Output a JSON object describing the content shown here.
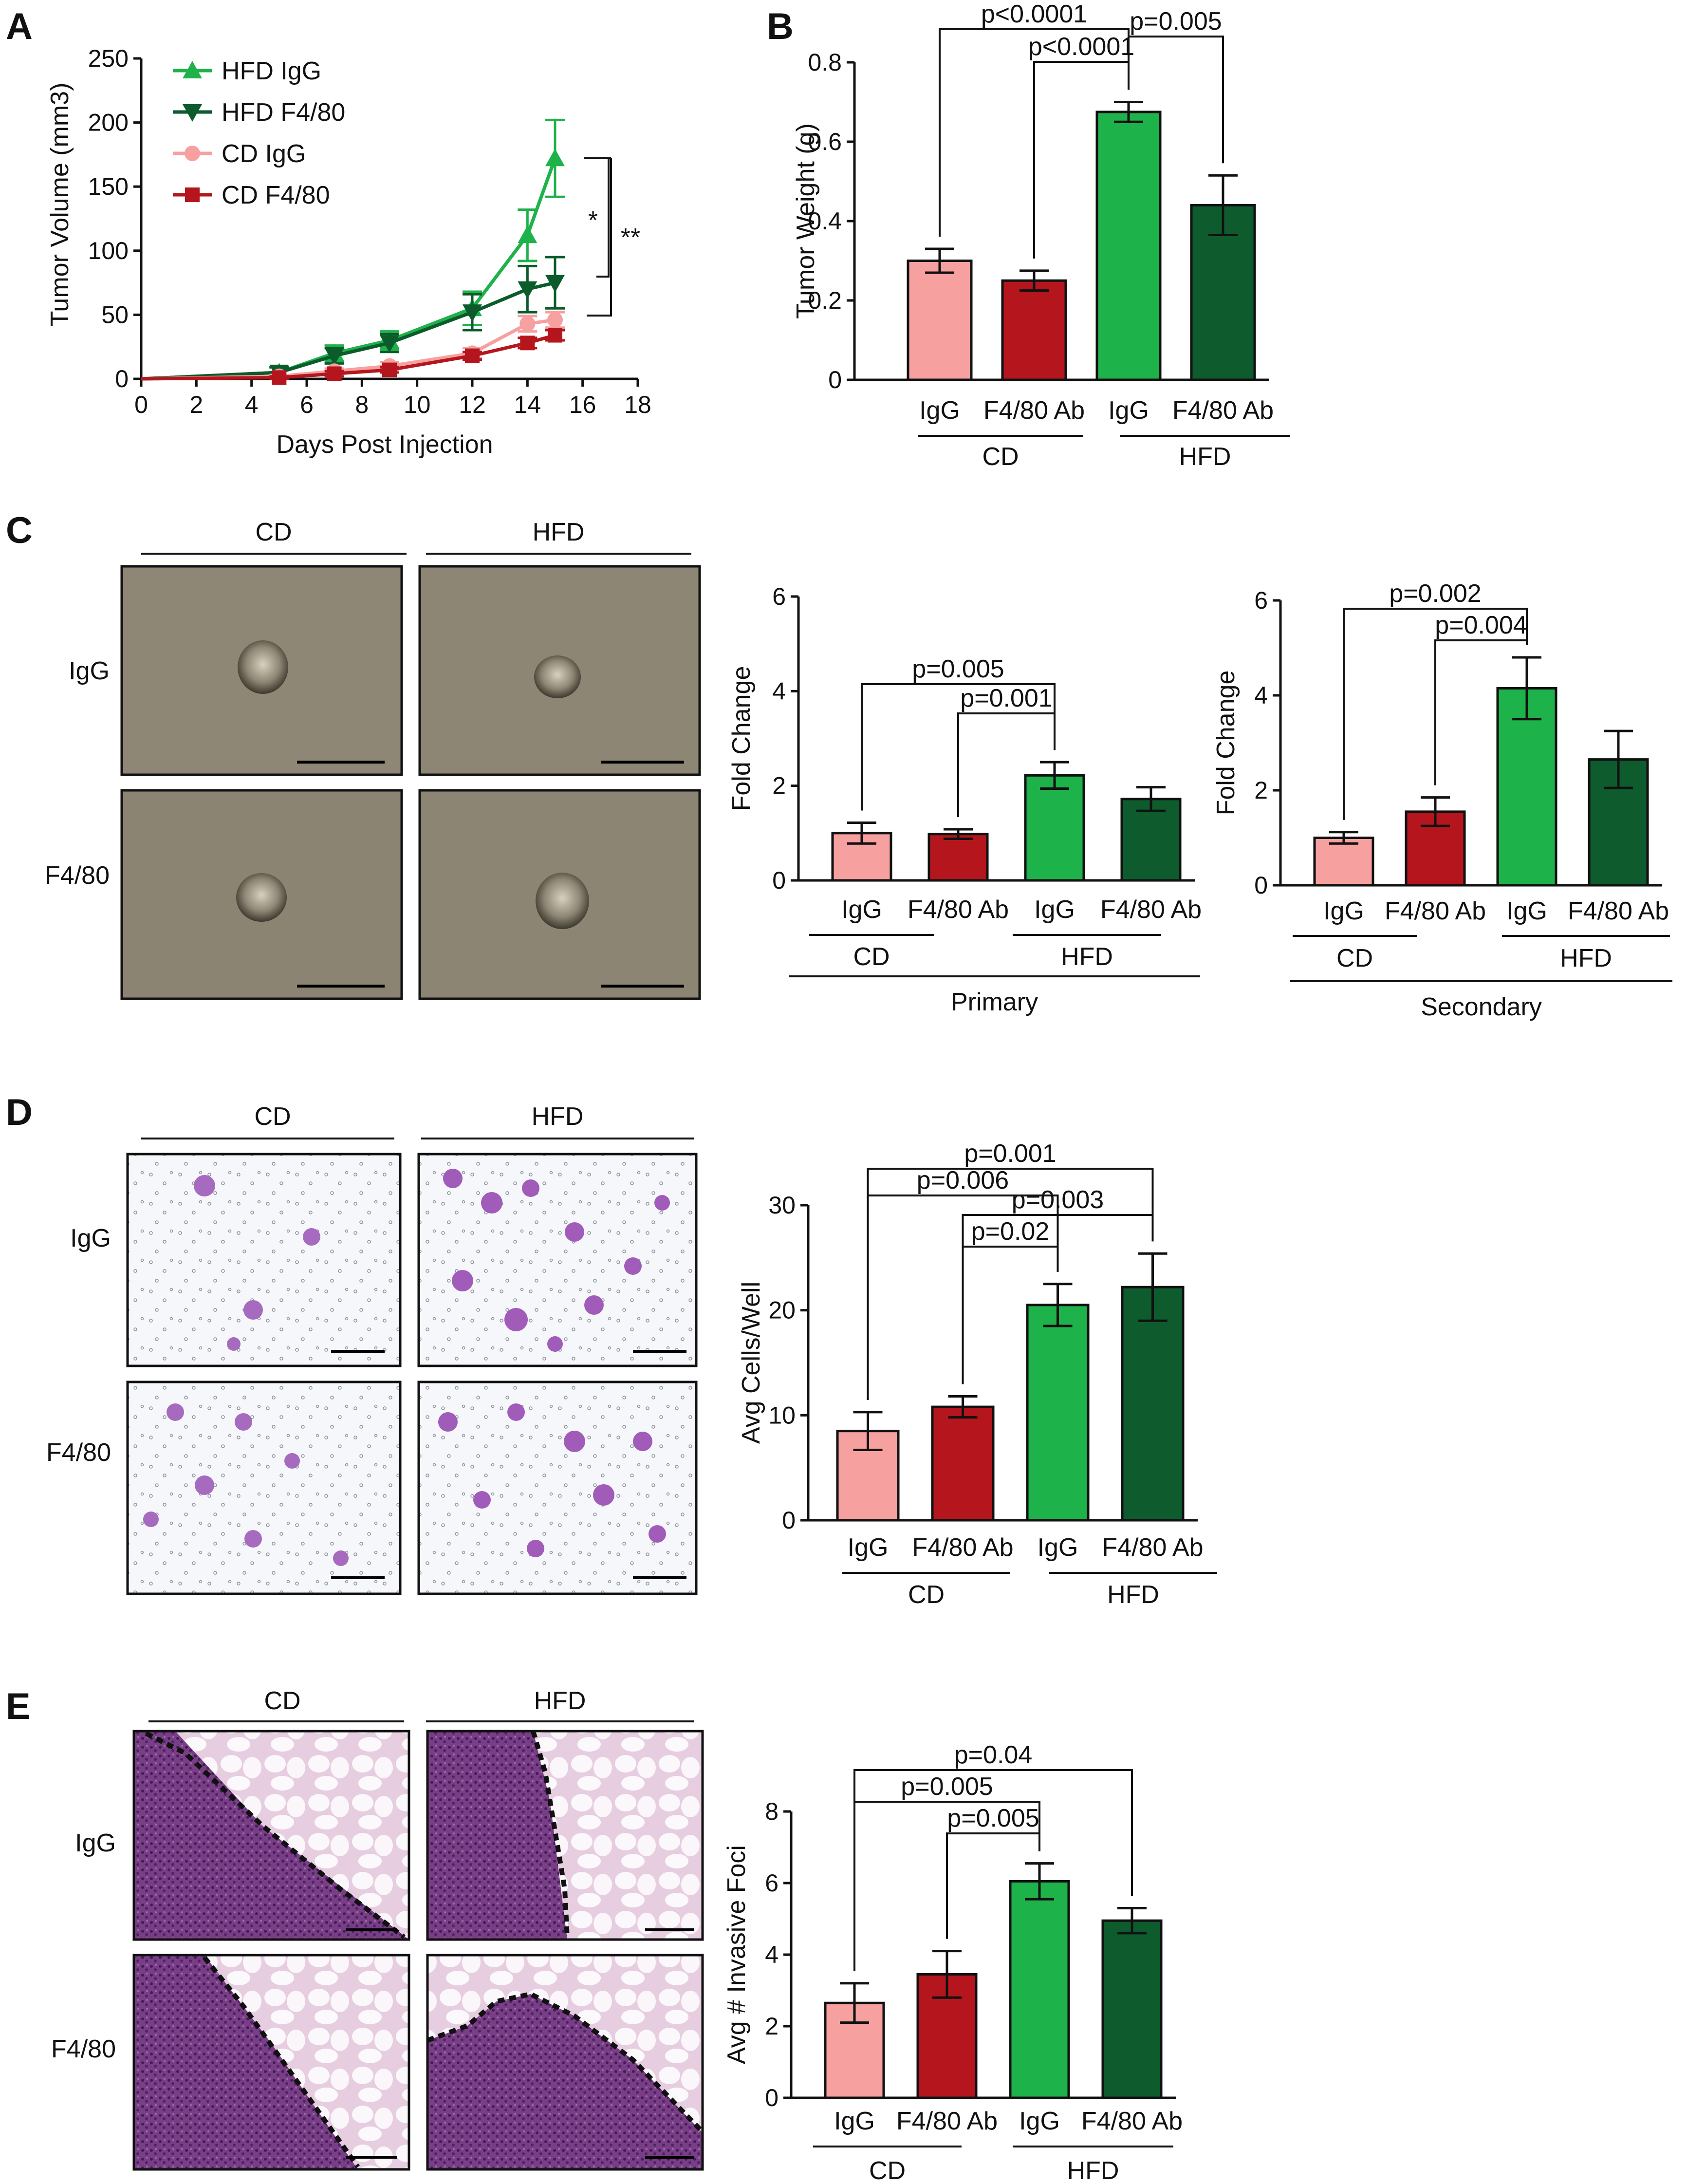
{
  "colors": {
    "hfd_igg": "#1eb24b",
    "hfd_f480": "#0b5b2b",
    "cd_igg": "#f6a0a0",
    "cd_f480": "#b5161e",
    "dark_green_bar": "#0e5c2e"
  },
  "panels": {
    "A": {
      "letter": "A"
    },
    "B": {
      "letter": "B"
    },
    "C": {
      "letter": "C",
      "col_headers": [
        "CD",
        "HFD"
      ],
      "row_labels": [
        "IgG",
        "F4/80"
      ]
    },
    "D": {
      "letter": "D",
      "col_headers": [
        "CD",
        "HFD"
      ],
      "row_labels": [
        "IgG",
        "F4/80"
      ]
    },
    "E": {
      "letter": "E",
      "col_headers": [
        "CD",
        "HFD"
      ],
      "row_labels": [
        "IgG",
        "F4/80"
      ]
    }
  },
  "chart_data": [
    {
      "id": "A",
      "type": "line",
      "xlabel": "Days Post Injection",
      "ylabel": "Tumor Volume (mm3)",
      "xlim": [
        0,
        18
      ],
      "ylim": [
        0,
        250
      ],
      "xticks": [
        "0",
        "2",
        "4",
        "6",
        "8",
        "10",
        "12",
        "14",
        "16",
        "18"
      ],
      "yticks": [
        "0",
        "50",
        "100",
        "150",
        "200",
        "250"
      ],
      "legend_position": "top-left",
      "significance": [
        "*",
        "**"
      ],
      "series": [
        {
          "name": "HFD IgG",
          "color": "#1eb24b",
          "marker": "triangle-up",
          "x": [
            0,
            5,
            7,
            9,
            12,
            14,
            15
          ],
          "y": [
            0,
            5,
            20,
            30,
            55,
            112,
            172
          ],
          "err": [
            0,
            4,
            6,
            7,
            13,
            20,
            30
          ]
        },
        {
          "name": "HFD F4/80",
          "color": "#0b5b2b",
          "marker": "triangle-down",
          "x": [
            0,
            5,
            7,
            9,
            12,
            14,
            15
          ],
          "y": [
            0,
            5,
            18,
            28,
            52,
            70,
            75
          ],
          "err": [
            0,
            4,
            6,
            7,
            14,
            18,
            20
          ]
        },
        {
          "name": "CD IgG",
          "color": "#f6a0a0",
          "marker": "circle",
          "x": [
            0,
            5,
            7,
            9,
            12,
            14,
            15
          ],
          "y": [
            0,
            2,
            6,
            10,
            20,
            43,
            46
          ],
          "err": [
            0,
            1,
            2,
            3,
            4,
            6,
            6
          ]
        },
        {
          "name": "CD F4/80",
          "color": "#b5161e",
          "marker": "square",
          "x": [
            0,
            5,
            7,
            9,
            12,
            14,
            15
          ],
          "y": [
            0,
            1,
            4,
            7,
            18,
            28,
            34
          ],
          "err": [
            0,
            1,
            2,
            2,
            3,
            4,
            4
          ]
        }
      ]
    },
    {
      "id": "B",
      "type": "bar",
      "ylabel": "Tumor Weight (g)",
      "ylim": [
        0,
        0.8
      ],
      "yticks": [
        "0",
        "0.2",
        "0.4",
        "0.6",
        "0.8"
      ],
      "categories": [
        "IgG",
        "F4/80 Ab",
        "IgG",
        "F4/80 Ab"
      ],
      "groups": [
        "CD",
        "HFD"
      ],
      "values": [
        0.3,
        0.25,
        0.675,
        0.44
      ],
      "errors": [
        0.03,
        0.025,
        0.025,
        0.075
      ],
      "colors": [
        "#f6a0a0",
        "#b5161e",
        "#1eb24b",
        "#0e5c2e"
      ],
      "pvalues": [
        {
          "label": "p<0.0001",
          "from": 0,
          "to": 2
        },
        {
          "label": "p<0.0001",
          "from": 1,
          "to": 2
        },
        {
          "label": "p=0.005",
          "from": 2,
          "to": 3
        }
      ]
    },
    {
      "id": "C-primary",
      "type": "bar",
      "ylabel": "Fold Change",
      "xlabel": "Primary",
      "ylim": [
        0,
        6
      ],
      "yticks": [
        "0",
        "2",
        "4",
        "6"
      ],
      "categories": [
        "IgG",
        "F4/80 Ab",
        "IgG",
        "F4/80 Ab"
      ],
      "groups": [
        "CD",
        "HFD"
      ],
      "values": [
        1.0,
        0.98,
        2.22,
        1.72
      ],
      "errors": [
        0.22,
        0.1,
        0.28,
        0.25
      ],
      "colors": [
        "#f6a0a0",
        "#b5161e",
        "#1eb24b",
        "#0e5c2e"
      ],
      "pvalues": [
        {
          "label": "p=0.005",
          "from": 0,
          "to": 2
        },
        {
          "label": "p=0.001",
          "from": 1,
          "to": 2
        }
      ]
    },
    {
      "id": "C-secondary",
      "type": "bar",
      "ylabel": "Fold Change",
      "xlabel": "Secondary",
      "ylim": [
        0,
        6
      ],
      "yticks": [
        "0",
        "2",
        "4",
        "6"
      ],
      "categories": [
        "IgG",
        "F4/80 Ab",
        "IgG",
        "F4/80 Ab"
      ],
      "groups": [
        "CD",
        "HFD"
      ],
      "values": [
        1.0,
        1.55,
        4.15,
        2.65
      ],
      "errors": [
        0.12,
        0.3,
        0.65,
        0.6
      ],
      "colors": [
        "#f6a0a0",
        "#b5161e",
        "#1eb24b",
        "#0e5c2e"
      ],
      "pvalues": [
        {
          "label": "p=0.002",
          "from": 0,
          "to": 2
        },
        {
          "label": "p=0.004",
          "from": 1,
          "to": 2
        }
      ]
    },
    {
      "id": "D",
      "type": "bar",
      "ylabel": "Avg Cells/Well",
      "ylim": [
        0,
        30
      ],
      "yticks": [
        "0",
        "10",
        "20",
        "30"
      ],
      "categories": [
        "IgG",
        "F4/80 Ab",
        "IgG",
        "F4/80 Ab"
      ],
      "groups": [
        "CD",
        "HFD"
      ],
      "values": [
        8.5,
        10.8,
        20.5,
        22.2
      ],
      "errors": [
        1.8,
        1.0,
        2.0,
        3.2
      ],
      "colors": [
        "#f6a0a0",
        "#b5161e",
        "#1eb24b",
        "#0e5c2e"
      ],
      "pvalues": [
        {
          "label": "p=0.001",
          "from": 0,
          "to": 3
        },
        {
          "label": "p=0.006",
          "from": 0,
          "to": 2
        },
        {
          "label": "p=0.003",
          "from": 1,
          "to": 3
        },
        {
          "label": "p=0.02",
          "from": 1,
          "to": 2
        }
      ]
    },
    {
      "id": "E",
      "type": "bar",
      "ylabel": "Avg # Invasive Foci",
      "ylim": [
        0,
        8
      ],
      "yticks": [
        "0",
        "2",
        "4",
        "6",
        "8"
      ],
      "categories": [
        "IgG",
        "F4/80 Ab",
        "IgG",
        "F4/80 Ab"
      ],
      "groups": [
        "CD",
        "HFD"
      ],
      "values": [
        2.65,
        3.45,
        6.05,
        4.95
      ],
      "errors": [
        0.55,
        0.65,
        0.5,
        0.35
      ],
      "colors": [
        "#f6a0a0",
        "#b5161e",
        "#1eb24b",
        "#0e5c2e"
      ],
      "pvalues": [
        {
          "label": "p=0.04",
          "from": 0,
          "to": 3
        },
        {
          "label": "p=0.005",
          "from": 0,
          "to": 2
        },
        {
          "label": "p=0.005",
          "from": 1,
          "to": 2
        }
      ]
    }
  ]
}
